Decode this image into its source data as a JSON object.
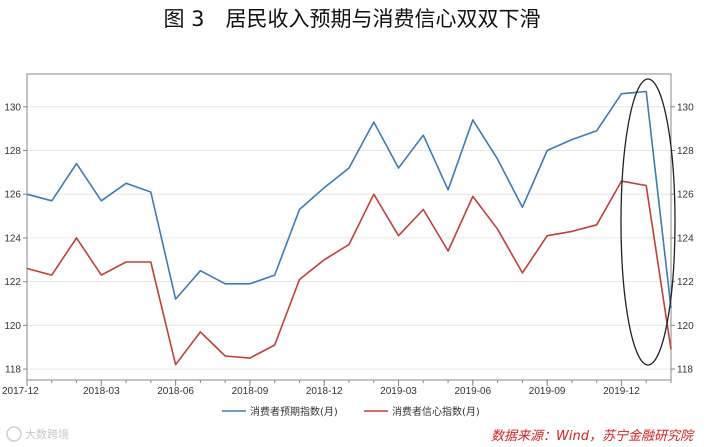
{
  "title": "图 3　居民收入预期与消费信心双双下滑",
  "source_note": "数据来源：Wind，苏宁金融研究院",
  "watermark": "大数跨境",
  "chart_data": {
    "type": "line",
    "x": [
      "2017-12",
      "2018-01",
      "2018-02",
      "2018-03",
      "2018-04",
      "2018-05",
      "2018-06",
      "2018-07",
      "2018-08",
      "2018-09",
      "2018-10",
      "2018-11",
      "2018-12",
      "2019-01",
      "2019-02",
      "2019-03",
      "2019-04",
      "2019-05",
      "2019-06",
      "2019-07",
      "2019-08",
      "2019-09",
      "2019-10",
      "2019-11",
      "2019-12",
      "2020-01",
      "2020-02"
    ],
    "xticks": [
      "2017-12",
      "2018-03",
      "2018-06",
      "2018-09",
      "2018-12",
      "2019-03",
      "2019-06",
      "2019-09",
      "2019-12"
    ],
    "ylim": [
      117.5,
      131.5
    ],
    "yticks": [
      118,
      120,
      122,
      124,
      126,
      128,
      130
    ],
    "series": [
      {
        "name": "消费者预期指数(月)",
        "color": "#3f7ab5",
        "values": [
          126.0,
          125.7,
          127.4,
          125.7,
          126.5,
          126.1,
          121.2,
          122.5,
          121.9,
          121.9,
          122.3,
          125.3,
          126.3,
          127.2,
          129.3,
          127.2,
          128.7,
          126.2,
          129.4,
          127.6,
          125.4,
          128.0,
          128.5,
          128.9,
          130.6,
          130.7,
          120.8
        ]
      },
      {
        "name": "消费者信心指数(月)",
        "color": "#c0403a",
        "values": [
          122.6,
          122.3,
          124.0,
          122.3,
          122.9,
          122.9,
          118.2,
          119.7,
          118.6,
          118.5,
          119.1,
          122.1,
          123.0,
          123.7,
          126.0,
          124.1,
          125.3,
          123.4,
          125.9,
          124.4,
          122.4,
          124.1,
          124.3,
          124.6,
          126.6,
          126.4,
          118.9
        ]
      }
    ],
    "grid": true,
    "legend_position": "bottom-center",
    "annotation": "ellipse"
  }
}
